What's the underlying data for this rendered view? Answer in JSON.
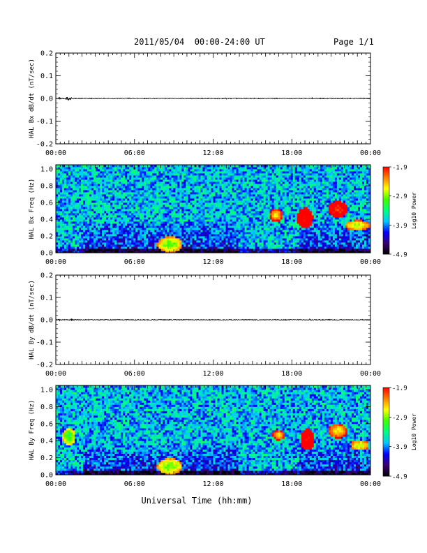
{
  "header": {
    "title": "2011/05/04  00:00-24:00 UT",
    "page": "Page 1/1"
  },
  "footer": {
    "xlabel": "Universal Time (hh:mm)"
  },
  "colors": {
    "trace": "#000000",
    "colormap": [
      "#000000",
      "#3a0070",
      "#0000ff",
      "#00c8ff",
      "#00ff80",
      "#40ff00",
      "#ffff00",
      "#ff8000",
      "#ff0000"
    ]
  },
  "chart_data": [
    {
      "type": "line",
      "ylabel": "HAL Bx dB/dt (nT/sec)",
      "x_ticks": [
        "00:00",
        "06:00",
        "12:00",
        "18:00",
        "00:00"
      ],
      "xlim": [
        0,
        24
      ],
      "y_ticks": [
        "-0.2",
        "-0.1",
        "0.0",
        "0.1",
        "0.2"
      ],
      "ylim": [
        -0.2,
        0.2
      ],
      "baseline": 0.0,
      "bursts": [
        {
          "t": 0.3,
          "amp": 0.006
        },
        {
          "t": 0.9,
          "amp": 0.01
        },
        {
          "t": 1.1,
          "amp": 0.008
        },
        {
          "t": 5.5,
          "amp": 0.004
        },
        {
          "t": 13.0,
          "amp": 0.003
        },
        {
          "t": 19.5,
          "amp": 0.004
        }
      ]
    },
    {
      "type": "heatmap",
      "ylabel": "HAL Bx Freq (Hz)",
      "x_ticks": [
        "00:00",
        "06:00",
        "12:00",
        "18:00",
        "00:00"
      ],
      "xlim": [
        0,
        24
      ],
      "y_ticks": [
        "0.0",
        "0.2",
        "0.4",
        "0.6",
        "0.8",
        "1.0"
      ],
      "ylim": [
        0,
        1.05
      ],
      "colorbar": {
        "label": "Log10 Power",
        "ticks": [
          "-1.9",
          "-2.9",
          "-3.9",
          "-4.9"
        ],
        "range": [
          -4.9,
          -1.9
        ]
      },
      "features": [
        {
          "t": 16.8,
          "f": 0.45,
          "dt": 0.4,
          "df": 0.06,
          "level": -2.6
        },
        {
          "t": 19.0,
          "f": 0.42,
          "dt": 0.5,
          "df": 0.1,
          "level": -1.9
        },
        {
          "t": 21.5,
          "f": 0.52,
          "dt": 0.6,
          "df": 0.08,
          "level": -2.1
        },
        {
          "t": 23.0,
          "f": 0.33,
          "dt": 0.8,
          "df": 0.05,
          "level": -2.8
        },
        {
          "t": 8.7,
          "f": 0.1,
          "dt": 0.8,
          "df": 0.08,
          "level": -3.0
        }
      ]
    },
    {
      "type": "line",
      "ylabel": "HAL By dB/dt (nT/sec)",
      "x_ticks": [
        "00:00",
        "06:00",
        "12:00",
        "18:00",
        "00:00"
      ],
      "xlim": [
        0,
        24
      ],
      "y_ticks": [
        "-0.2",
        "-0.1",
        "0.0",
        "0.1",
        "0.2"
      ],
      "ylim": [
        -0.2,
        0.2
      ],
      "baseline": 0.0,
      "bursts": [
        {
          "t": 0.3,
          "amp": 0.004
        },
        {
          "t": 1.2,
          "amp": 0.005
        },
        {
          "t": 19.3,
          "amp": 0.006
        }
      ]
    },
    {
      "type": "heatmap",
      "ylabel": "HAL By Freq (Hz)",
      "x_ticks": [
        "00:00",
        "06:00",
        "12:00",
        "18:00",
        "00:00"
      ],
      "xlim": [
        0,
        24
      ],
      "y_ticks": [
        "0.0",
        "0.2",
        "0.4",
        "0.6",
        "0.8",
        "1.0"
      ],
      "ylim": [
        0,
        1.05
      ],
      "colorbar": {
        "label": "Log10 Power",
        "ticks": [
          "-1.9",
          "-2.9",
          "-3.9",
          "-4.9"
        ],
        "range": [
          -4.9,
          -1.9
        ]
      },
      "features": [
        {
          "t": 17.0,
          "f": 0.47,
          "dt": 0.4,
          "df": 0.05,
          "level": -2.5
        },
        {
          "t": 19.2,
          "f": 0.42,
          "dt": 0.45,
          "df": 0.1,
          "level": -1.9
        },
        {
          "t": 21.5,
          "f": 0.52,
          "dt": 0.6,
          "df": 0.07,
          "level": -2.6
        },
        {
          "t": 23.2,
          "f": 0.35,
          "dt": 0.6,
          "df": 0.05,
          "level": -2.8
        },
        {
          "t": 8.7,
          "f": 0.1,
          "dt": 0.8,
          "df": 0.08,
          "level": -3.0
        },
        {
          "t": 1.0,
          "f": 0.45,
          "dt": 0.4,
          "df": 0.08,
          "level": -3.2
        }
      ]
    }
  ]
}
